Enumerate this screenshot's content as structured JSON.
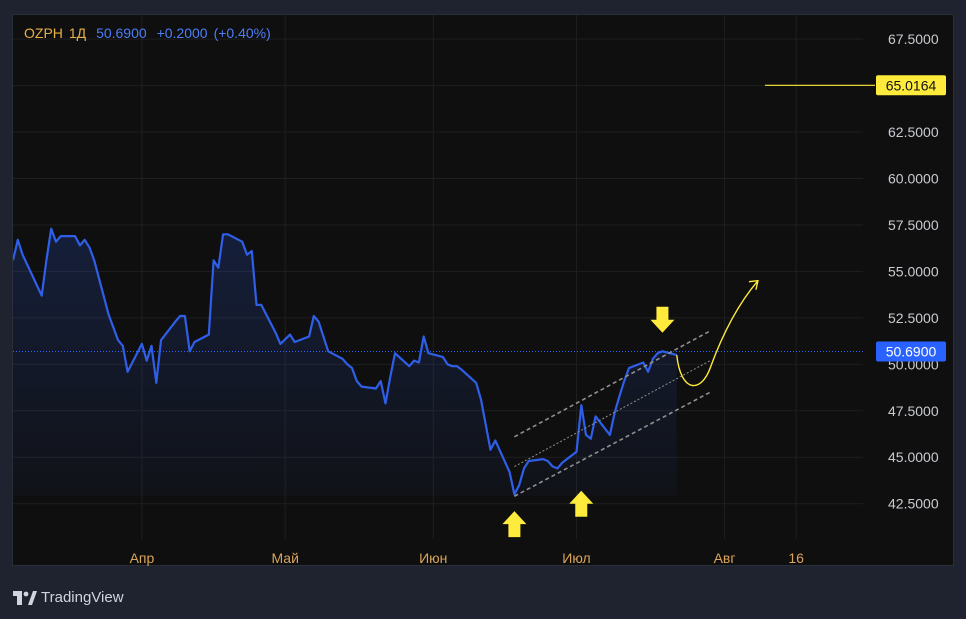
{
  "header": {
    "symbol": "OZPH",
    "interval": "1Д",
    "price": "50.6900",
    "change": "+0.2000",
    "change_pct": "(+0.40%)"
  },
  "footer": {
    "brand": "TradingView"
  },
  "colors": {
    "line": "#2f5fe8",
    "price_tag": "#2962ff",
    "level": "#ffeb3b",
    "arrow": "#ffeb3b",
    "channel": "#8f8f8f",
    "axis_text": "#c9cbd1",
    "date_text": "#d9a45b"
  },
  "chart_data": {
    "type": "line",
    "title": "",
    "xlabel": "",
    "ylabel": "",
    "ylim": [
      40.6,
      68.8
    ],
    "y_ticks": [
      "42.5000",
      "45.0000",
      "47.5000",
      "50.0000",
      "52.5000",
      "55.0000",
      "57.5000",
      "60.0000",
      "62.5000",
      "65.0000",
      "67.5000"
    ],
    "x_ticks": [
      "Апр",
      "Май",
      "Июн",
      "Июл",
      "Авг",
      "16"
    ],
    "x_tick_dates": [
      "2024-04-01",
      "2024-05-01",
      "2024-06-01",
      "2024-07-01",
      "2024-08-01",
      "2024-08-16"
    ],
    "x_range": [
      "2024-03-05",
      "2024-08-30"
    ],
    "current_price": {
      "value": 50.69,
      "label": "50.6900"
    },
    "level_line": {
      "value": 65.0164,
      "label": "65.0164"
    },
    "series": [
      {
        "x": [
          "2024-03-05",
          "2024-03-06",
          "2024-03-07",
          "2024-03-11",
          "2024-03-12",
          "2024-03-13",
          "2024-03-14",
          "2024-03-15",
          "2024-03-18",
          "2024-03-19",
          "2024-03-20",
          "2024-03-21",
          "2024-03-22",
          "2024-03-25",
          "2024-03-26",
          "2024-03-27",
          "2024-03-28",
          "2024-03-29",
          "2024-04-01",
          "2024-04-02",
          "2024-04-03",
          "2024-04-04",
          "2024-04-05",
          "2024-04-08",
          "2024-04-09",
          "2024-04-10",
          "2024-04-11",
          "2024-04-12",
          "2024-04-15",
          "2024-04-16",
          "2024-04-17",
          "2024-04-18",
          "2024-04-19",
          "2024-04-22",
          "2024-04-23",
          "2024-04-24",
          "2024-04-25",
          "2024-04-26",
          "2024-04-29",
          "2024-04-30",
          "2024-05-02",
          "2024-05-03",
          "2024-05-06",
          "2024-05-07",
          "2024-05-08",
          "2024-05-10",
          "2024-05-13",
          "2024-05-14",
          "2024-05-15",
          "2024-05-16",
          "2024-05-17",
          "2024-05-20",
          "2024-05-21",
          "2024-05-22",
          "2024-05-23",
          "2024-05-24",
          "2024-05-27",
          "2024-05-28",
          "2024-05-29",
          "2024-05-30",
          "2024-05-31",
          "2024-06-03",
          "2024-06-04",
          "2024-06-05",
          "2024-06-06",
          "2024-06-07",
          "2024-06-10",
          "2024-06-11",
          "2024-06-13",
          "2024-06-14",
          "2024-06-17",
          "2024-06-18",
          "2024-06-19",
          "2024-06-20",
          "2024-06-21",
          "2024-06-24",
          "2024-06-25",
          "2024-06-26",
          "2024-06-27",
          "2024-06-28",
          "2024-07-01",
          "2024-07-02",
          "2024-07-03",
          "2024-07-04",
          "2024-07-05",
          "2024-07-08",
          "2024-07-09",
          "2024-07-10",
          "2024-07-11",
          "2024-07-12",
          "2024-07-15",
          "2024-07-16",
          "2024-07-17",
          "2024-07-18",
          "2024-07-19",
          "2024-07-22"
        ],
        "values": [
          55.6,
          56.7,
          55.9,
          53.7,
          55.6,
          57.3,
          56.6,
          56.9,
          56.9,
          56.4,
          56.7,
          56.3,
          55.6,
          52.7,
          52.0,
          51.3,
          51.0,
          49.6,
          51.1,
          50.2,
          51.0,
          49.0,
          51.3,
          52.3,
          52.6,
          52.6,
          50.7,
          51.2,
          51.6,
          55.6,
          55.2,
          57.0,
          57.0,
          56.6,
          55.9,
          56.1,
          53.2,
          53.2,
          51.7,
          51.1,
          51.6,
          51.2,
          51.5,
          52.6,
          52.3,
          50.7,
          50.3,
          50.0,
          49.8,
          49.1,
          48.8,
          48.7,
          49.1,
          47.9,
          49.3,
          50.6,
          49.9,
          50.2,
          50.1,
          51.5,
          50.6,
          50.4,
          50.0,
          49.9,
          49.9,
          49.7,
          49.0,
          48.1,
          45.4,
          45.9,
          44.2,
          43.0,
          43.5,
          44.4,
          44.8,
          44.9,
          44.8,
          44.5,
          44.4,
          44.7,
          45.3,
          47.8,
          46.2,
          46.0,
          47.2,
          46.2,
          47.4,
          48.3,
          49.1,
          49.8,
          50.1,
          49.6,
          50.3,
          50.6,
          50.7,
          50.5
        ]
      }
    ],
    "annotations": {
      "channel_upper": {
        "x": [
          "2024-06-18",
          "2024-07-29"
        ],
        "y": [
          46.1,
          51.8
        ]
      },
      "channel_mid": {
        "x": [
          "2024-06-18",
          "2024-07-29"
        ],
        "y": [
          44.5,
          50.2
        ]
      },
      "channel_lower": {
        "x": [
          "2024-06-18",
          "2024-07-29"
        ],
        "y": [
          42.9,
          48.5
        ]
      },
      "forecast_path": {
        "x": [
          "2024-07-22",
          "2024-07-25",
          "2024-07-29",
          "2024-08-05",
          "2024-08-08"
        ],
        "y": [
          50.5,
          49.2,
          49.8,
          53.5,
          54.5
        ]
      },
      "up_arrows": [
        {
          "x": "2024-06-18",
          "y": 42.1
        },
        {
          "x": "2024-07-02",
          "y": 43.2
        }
      ],
      "down_arrows": [
        {
          "x": "2024-07-19",
          "y": 51.7
        }
      ]
    }
  }
}
